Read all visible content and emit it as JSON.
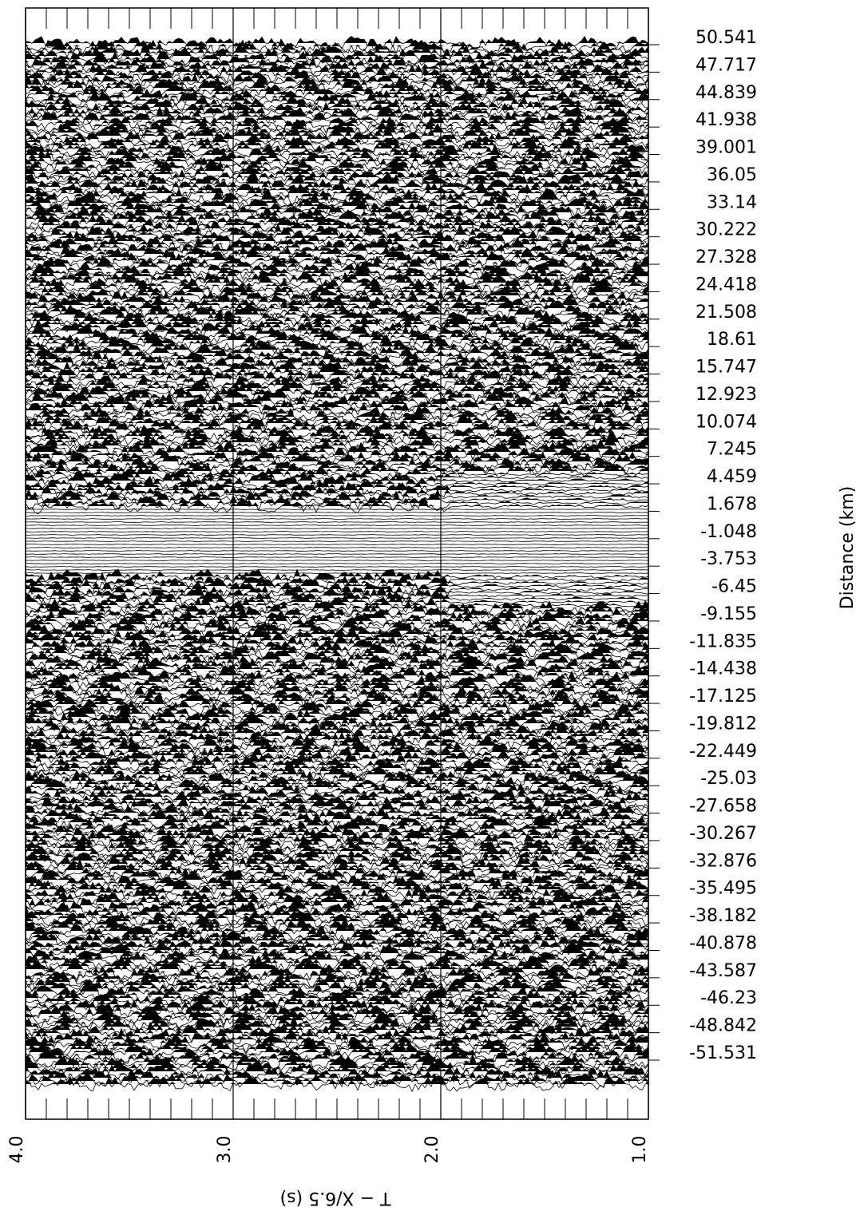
{
  "chart_data": {
    "type": "record-section",
    "xlabel": "T − X/6.5 (s)",
    "ylabel": "Distance (km)",
    "xlim": [
      4.0,
      1.0
    ],
    "xticks": [
      {
        "value": 4.0,
        "label": "4.0"
      },
      {
        "value": 3.0,
        "label": "3.0"
      },
      {
        "value": 2.0,
        "label": "2.0"
      },
      {
        "value": 1.0,
        "label": "1.0"
      }
    ],
    "xminorticks": [
      3.9,
      3.8,
      3.7,
      3.6,
      3.5,
      3.4,
      3.3,
      3.2,
      3.1,
      2.9,
      2.8,
      2.7,
      2.6,
      2.5,
      2.4,
      2.3,
      2.2,
      2.1,
      1.9,
      1.8,
      1.7,
      1.6,
      1.5,
      1.4,
      1.3,
      1.2,
      1.1
    ],
    "grid": true,
    "trace_distances": [
      50.541,
      47.717,
      44.839,
      41.938,
      39.001,
      36.05,
      33.14,
      30.222,
      27.328,
      24.418,
      21.508,
      18.61,
      15.747,
      12.923,
      10.074,
      7.245,
      4.459,
      1.678,
      -1.048,
      -3.753,
      -6.45,
      -9.155,
      -11.835,
      -14.438,
      -17.125,
      -19.812,
      -22.449,
      -25.03,
      -27.658,
      -30.267,
      -32.876,
      -35.495,
      -38.182,
      -40.878,
      -43.587,
      -46.23,
      -48.842,
      -51.531
    ]
  }
}
